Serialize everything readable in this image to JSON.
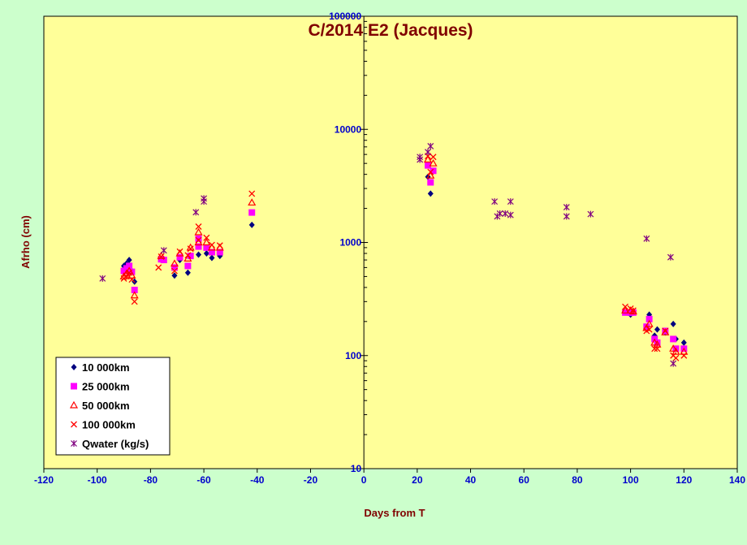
{
  "chart_data": {
    "type": "scatter",
    "title": "C/2014 E2 (Jacques)",
    "xlabel": "Days from  T",
    "ylabel": "Afrho (cm)",
    "xlim": [
      -120,
      140
    ],
    "ylim": [
      10,
      100000
    ],
    "yscale": "log",
    "xticks": [
      -120,
      -100,
      -80,
      -60,
      -40,
      -20,
      0,
      20,
      40,
      60,
      80,
      100,
      120,
      140
    ],
    "yticks": [
      10,
      100,
      1000,
      10000,
      100000
    ],
    "grid": false,
    "legend_position": "bottom-left",
    "colors": {
      "plot_bg": "#ffff99",
      "page_bg": "#ccffcc",
      "title": "#800000",
      "ticks": "#0000cc"
    },
    "series": [
      {
        "name": "10 000km",
        "marker": "diamond",
        "color": "#000080",
        "points": [
          [
            -90,
            620
          ],
          [
            -89,
            650
          ],
          [
            -88,
            700
          ],
          [
            -87,
            560
          ],
          [
            -86,
            450
          ],
          [
            -76,
            700
          ],
          [
            -71,
            510
          ],
          [
            -69,
            700
          ],
          [
            -66,
            540
          ],
          [
            -62,
            780
          ],
          [
            -59,
            800
          ],
          [
            -57,
            730
          ],
          [
            -54,
            760
          ],
          [
            -42,
            1430
          ],
          [
            24,
            3800
          ],
          [
            25,
            2700
          ],
          [
            98,
            240
          ],
          [
            100,
            230
          ],
          [
            107,
            230
          ],
          [
            109,
            150
          ],
          [
            110,
            170
          ],
          [
            113,
            160
          ],
          [
            116,
            190
          ],
          [
            117,
            140
          ],
          [
            120,
            130
          ]
        ]
      },
      {
        "name": "25 000km",
        "marker": "square",
        "color": "#ff00ff",
        "points": [
          [
            -90,
            560
          ],
          [
            -89,
            590
          ],
          [
            -88,
            620
          ],
          [
            -87,
            550
          ],
          [
            -86,
            380
          ],
          [
            -76,
            710
          ],
          [
            -75,
            700
          ],
          [
            -71,
            600
          ],
          [
            -69,
            740
          ],
          [
            -66,
            620
          ],
          [
            -65,
            760
          ],
          [
            -62,
            1080
          ],
          [
            -62,
            920
          ],
          [
            -59,
            900
          ],
          [
            -57,
            820
          ],
          [
            -54,
            820
          ],
          [
            -42,
            1840
          ],
          [
            24,
            4800
          ],
          [
            25,
            3400
          ],
          [
            26,
            4300
          ],
          [
            98,
            240
          ],
          [
            100,
            240
          ],
          [
            101,
            240
          ],
          [
            106,
            180
          ],
          [
            107,
            210
          ],
          [
            109,
            140
          ],
          [
            110,
            130
          ],
          [
            113,
            165
          ],
          [
            116,
            140
          ],
          [
            117,
            115
          ],
          [
            120,
            115
          ]
        ]
      },
      {
        "name": "50 000km",
        "marker": "triangle",
        "color": "#ff0000",
        "points": [
          [
            -90,
            500
          ],
          [
            -89,
            530
          ],
          [
            -88,
            560
          ],
          [
            -87,
            510
          ],
          [
            -86,
            340
          ],
          [
            -76,
            760
          ],
          [
            -71,
            650
          ],
          [
            -69,
            800
          ],
          [
            -66,
            720
          ],
          [
            -65,
            900
          ],
          [
            -62,
            1230
          ],
          [
            -62,
            1000
          ],
          [
            -59,
            1000
          ],
          [
            -57,
            900
          ],
          [
            -54,
            900
          ],
          [
            -42,
            2250
          ],
          [
            24,
            5400
          ],
          [
            25,
            3900
          ],
          [
            26,
            5000
          ],
          [
            98,
            250
          ],
          [
            100,
            250
          ],
          [
            101,
            245
          ],
          [
            106,
            175
          ],
          [
            107,
            190
          ],
          [
            109,
            130
          ],
          [
            110,
            125
          ],
          [
            113,
            160
          ],
          [
            116,
            115
          ],
          [
            117,
            108
          ],
          [
            120,
            108
          ]
        ]
      },
      {
        "name": "100 000km",
        "marker": "x",
        "color": "#ff0000",
        "points": [
          [
            -90,
            480
          ],
          [
            -89,
            500
          ],
          [
            -88,
            540
          ],
          [
            -87,
            470
          ],
          [
            -86,
            300
          ],
          [
            -77,
            600
          ],
          [
            -76,
            750
          ],
          [
            -71,
            560
          ],
          [
            -69,
            830
          ],
          [
            -66,
            770
          ],
          [
            -65,
            880
          ],
          [
            -62,
            1380
          ],
          [
            -62,
            1050
          ],
          [
            -59,
            1100
          ],
          [
            -57,
            950
          ],
          [
            -54,
            940
          ],
          [
            -42,
            2700
          ],
          [
            24,
            5800
          ],
          [
            25,
            4200
          ],
          [
            26,
            5700
          ],
          [
            98,
            270
          ],
          [
            100,
            260
          ],
          [
            101,
            250
          ],
          [
            106,
            165
          ],
          [
            107,
            170
          ],
          [
            109,
            115
          ],
          [
            110,
            115
          ],
          [
            113,
            165
          ],
          [
            116,
            100
          ],
          [
            117,
            95
          ],
          [
            120,
            100
          ]
        ]
      },
      {
        "name": "Qwater (kg/s)",
        "marker": "star",
        "color": "#800080",
        "points": [
          [
            -98,
            480
          ],
          [
            -75,
            850
          ],
          [
            -63,
            1850
          ],
          [
            -60,
            2300
          ],
          [
            -60,
            2450
          ],
          [
            21,
            5400
          ],
          [
            21,
            5700
          ],
          [
            24,
            6300
          ],
          [
            25,
            7100
          ],
          [
            49,
            2300
          ],
          [
            50,
            1700
          ],
          [
            51,
            1800
          ],
          [
            53,
            1800
          ],
          [
            55,
            2300
          ],
          [
            55,
            1750
          ],
          [
            76,
            1700
          ],
          [
            76,
            2050
          ],
          [
            85,
            1780
          ],
          [
            106,
            1080
          ],
          [
            115,
            740
          ],
          [
            116,
            85
          ]
        ]
      }
    ]
  }
}
